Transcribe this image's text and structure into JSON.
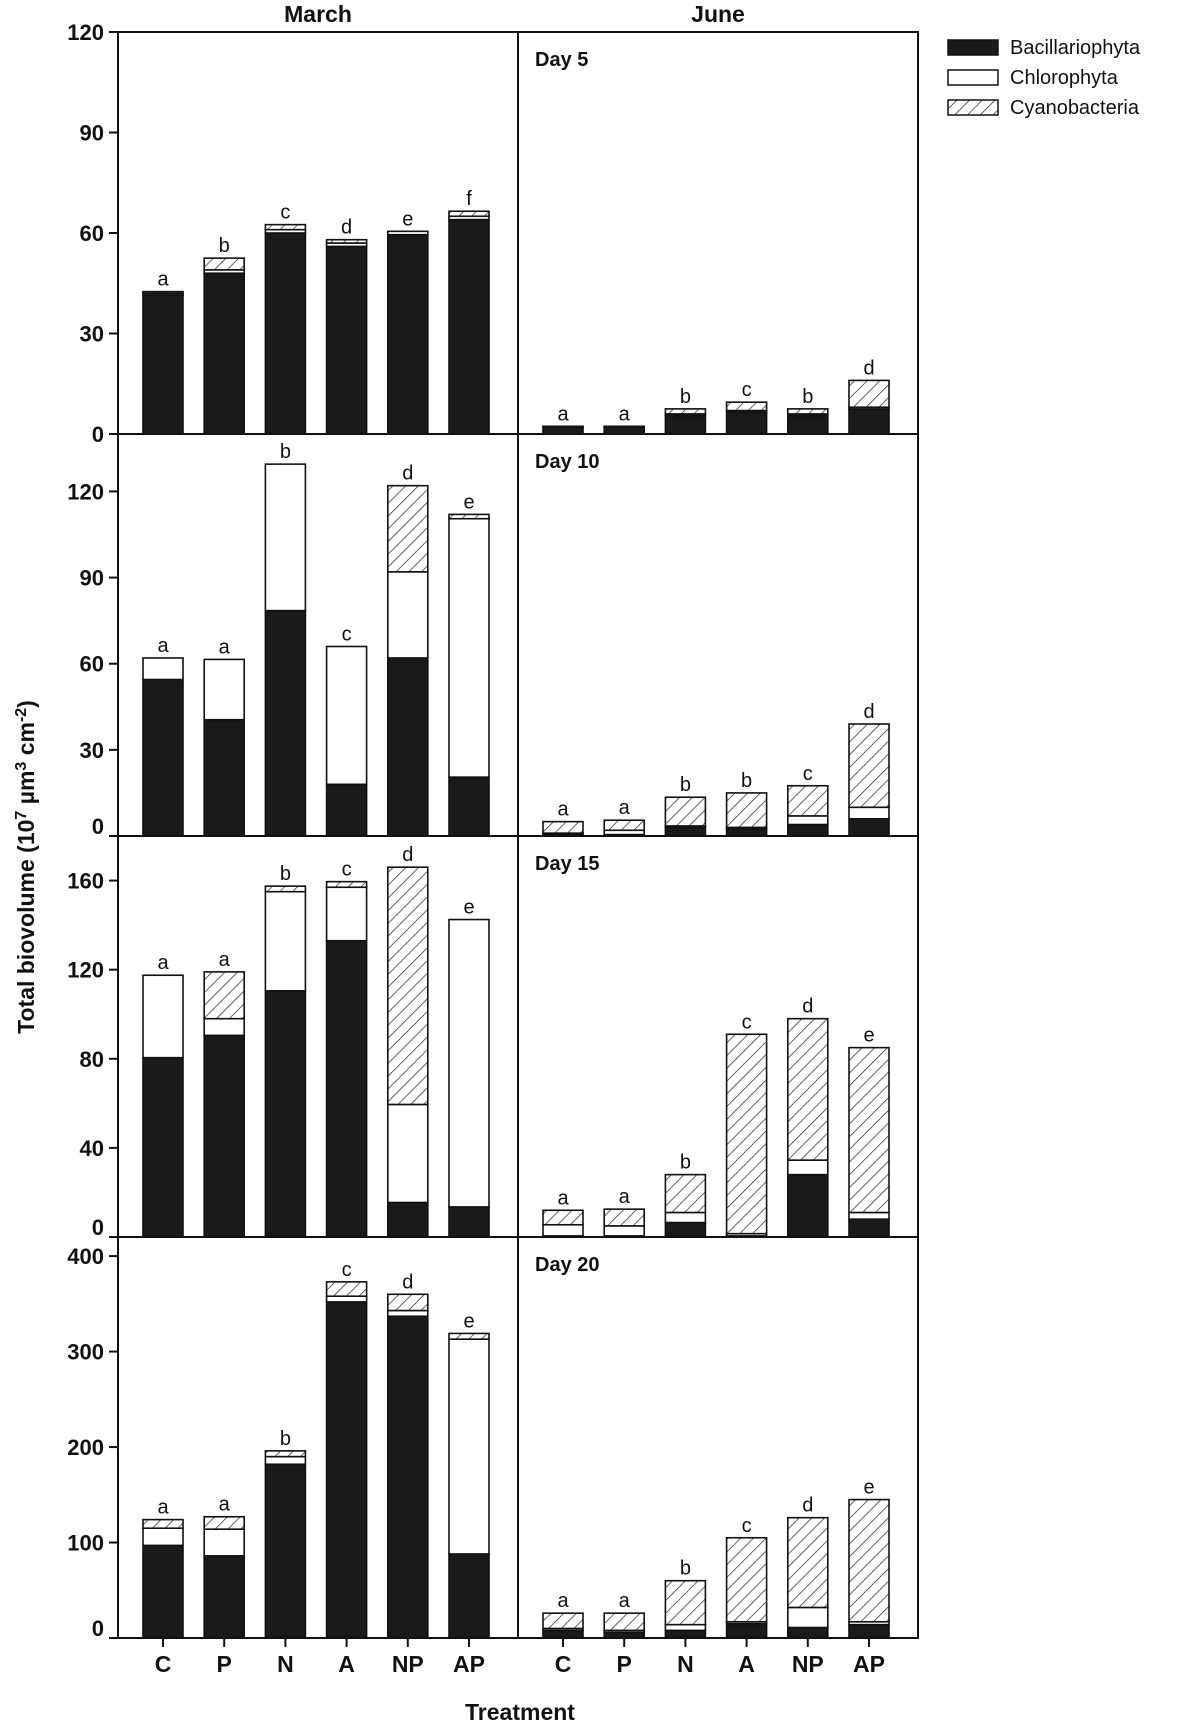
{
  "chart_data": {
    "type": "bar",
    "stacked": true,
    "categories": [
      "C",
      "P",
      "N",
      "A",
      "NP",
      "AP"
    ],
    "column_titles": [
      "March",
      "June"
    ],
    "xlabel": "Treatment",
    "ylabel": "Total biovolume (10⁷ µm³ cm⁻²)",
    "series_names": [
      "Bacillariophyta",
      "Chlorophyta",
      "Cyanobacteria"
    ],
    "legend_position": "top-right",
    "fills": {
      "Bacillariophyta": "#1a1a1a",
      "Chlorophyta": "#ffffff",
      "Cyanobacteria": "hatched"
    },
    "rows": [
      {
        "day_label": "Day 5",
        "ylim": [
          0,
          120
        ],
        "yticks": [
          0,
          30,
          60,
          90,
          120
        ],
        "panels": {
          "March": {
            "series": [
              {
                "name": "Bacillariophyta",
                "values": [
                  41.5,
                  48,
                  60,
                  56,
                  59.5,
                  64
                ]
              },
              {
                "name": "Chlorophyta",
                "values": [
                  0.5,
                  1,
                  1,
                  1,
                  1,
                  1
                ]
              },
              {
                "name": "Cyanobacteria",
                "values": [
                  0.5,
                  3.5,
                  1.5,
                  1,
                  0,
                  1.5
                ]
              }
            ],
            "letters": [
              "a",
              "b",
              "c",
              "d",
              "e",
              "f"
            ]
          },
          "June": {
            "series": [
              {
                "name": "Bacillariophyta",
                "values": [
                  2,
                  2,
                  5.5,
                  6.5,
                  5.5,
                  7.5
                ]
              },
              {
                "name": "Chlorophyta",
                "values": [
                  0.2,
                  0.2,
                  0.5,
                  0.5,
                  0.5,
                  0.5
                ]
              },
              {
                "name": "Cyanobacteria",
                "values": [
                  0.1,
                  0.1,
                  1.5,
                  2.5,
                  1.5,
                  8
                ]
              }
            ],
            "letters": [
              "a",
              "a",
              "b",
              "c",
              "b",
              "d"
            ]
          }
        }
      },
      {
        "day_label": "Day 10",
        "ylim": [
          0,
          140
        ],
        "yticks": [
          0,
          30,
          60,
          90,
          120
        ],
        "panels": {
          "March": {
            "series": [
              {
                "name": "Bacillariophyta",
                "values": [
                  54.5,
                  40.5,
                  78.5,
                  18,
                  62,
                  20.5
                ]
              },
              {
                "name": "Chlorophyta",
                "values": [
                  7.5,
                  21,
                  51,
                  48,
                  30,
                  90
                ]
              },
              {
                "name": "Cyanobacteria",
                "values": [
                  0,
                  0,
                  0,
                  0,
                  30,
                  1.5
                ]
              }
            ],
            "letters": [
              "a",
              "a",
              "b",
              "c",
              "d",
              "e"
            ]
          },
          "June": {
            "series": [
              {
                "name": "Bacillariophyta",
                "values": [
                  0.5,
                  0.5,
                  3,
                  2.5,
                  4,
                  6
                ]
              },
              {
                "name": "Chlorophyta",
                "values": [
                  0.5,
                  1.5,
                  0.5,
                  0.5,
                  3,
                  4
                ]
              },
              {
                "name": "Cyanobacteria",
                "values": [
                  4,
                  3.5,
                  10,
                  12,
                  10.5,
                  29
                ]
              }
            ],
            "letters": [
              "a",
              "a",
              "b",
              "b",
              "c",
              "d"
            ]
          }
        }
      },
      {
        "day_label": "Day 15",
        "ylim": [
          0,
          180
        ],
        "yticks": [
          0,
          40,
          80,
          120,
          160
        ],
        "panels": {
          "March": {
            "series": [
              {
                "name": "Bacillariophyta",
                "values": [
                  80.5,
                  90.5,
                  110.5,
                  133,
                  15.5,
                  13.5
                ]
              },
              {
                "name": "Chlorophyta",
                "values": [
                  37,
                  7.5,
                  44.5,
                  24,
                  44,
                  129
                ]
              },
              {
                "name": "Cyanobacteria",
                "values": [
                  0,
                  21,
                  2.5,
                  2.5,
                  106.5,
                  0
                ]
              }
            ],
            "letters": [
              "a",
              "a",
              "b",
              "c",
              "d",
              "e"
            ]
          },
          "June": {
            "series": [
              {
                "name": "Bacillariophyta",
                "values": [
                  0.5,
                  0.5,
                  6.5,
                  0.5,
                  28,
                  8
                ]
              },
              {
                "name": "Chlorophyta",
                "values": [
                  5,
                  4.5,
                  4.5,
                  1,
                  6.5,
                  3
                ]
              },
              {
                "name": "Cyanobacteria",
                "values": [
                  6.5,
                  7.5,
                  17,
                  89.5,
                  63.5,
                  74
                ]
              }
            ],
            "letters": [
              "a",
              "a",
              "b",
              "c",
              "d",
              "e"
            ]
          }
        }
      },
      {
        "day_label": "Day 20",
        "ylim": [
          0,
          420
        ],
        "yticks": [
          0,
          100,
          200,
          300,
          400
        ],
        "panels": {
          "March": {
            "series": [
              {
                "name": "Bacillariophyta",
                "values": [
                  97,
                  86,
                  182,
                  352,
                  337,
                  88
                ]
              },
              {
                "name": "Chlorophyta",
                "values": [
                  18,
                  28,
                  8,
                  6,
                  6,
                  225
                ]
              },
              {
                "name": "Cyanobacteria",
                "values": [
                  9,
                  13,
                  6,
                  15,
                  17,
                  6
                ]
              }
            ],
            "letters": [
              "a",
              "a",
              "b",
              "c",
              "d",
              "e"
            ]
          },
          "June": {
            "series": [
              {
                "name": "Bacillariophyta",
                "values": [
                  8,
                  6,
                  8,
                  15,
                  11,
                  14
                ]
              },
              {
                "name": "Chlorophyta",
                "values": [
                  2,
                  2,
                  6,
                  2,
                  21,
                  3
                ]
              },
              {
                "name": "Cyanobacteria",
                "values": [
                  16,
                  18,
                  46,
                  88,
                  94,
                  128
                ]
              }
            ],
            "letters": [
              "a",
              "a",
              "b",
              "c",
              "d",
              "e"
            ]
          }
        }
      }
    ]
  }
}
